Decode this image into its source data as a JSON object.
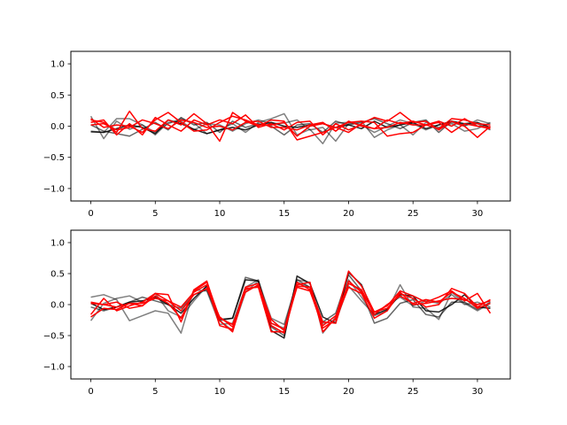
{
  "chart_data": [
    {
      "type": "line",
      "x": [
        0,
        1,
        2,
        3,
        4,
        5,
        6,
        7,
        8,
        9,
        10,
        11,
        12,
        13,
        14,
        15,
        16,
        17,
        18,
        19,
        20,
        21,
        22,
        23,
        24,
        25,
        26,
        27,
        28,
        29,
        30,
        31
      ],
      "xlim": [
        -1.55,
        32.55
      ],
      "ylim": [
        -1.2,
        1.2
      ],
      "xticks": [
        0,
        5,
        10,
        15,
        20,
        25,
        30
      ],
      "yticks": [
        -1.0,
        -0.5,
        0.0,
        0.5,
        1.0
      ],
      "xtick_labels": [
        "0",
        "5",
        "10",
        "15",
        "20",
        "25",
        "30"
      ],
      "ytick_labels": [
        "−1.0",
        "−0.5",
        "0.0",
        "0.5",
        "1.0"
      ],
      "grid": false,
      "series": [
        {
          "color": "#000000",
          "opacity": 0.5,
          "values": [
            0.16,
            -0.2,
            0.08,
            -0.05,
            0.02,
            -0.1,
            0.04,
            0.12,
            0.05,
            -0.12,
            -0.06,
            0.04,
            -0.1,
            0.06,
            0.12,
            0.2,
            -0.14,
            -0.05,
            -0.28,
            0.05,
            0.06,
            0.02,
            -0.1,
            0.0,
            0.1,
            0.04,
            -0.06,
            0.02,
            0.06,
            0.0,
            0.1,
            0.04
          ]
        },
        {
          "color": "#000000",
          "opacity": 0.5,
          "values": [
            -0.08,
            -0.1,
            0.12,
            0.12,
            0.02,
            -0.14,
            0.06,
            0.08,
            -0.06,
            0.04,
            0.02,
            -0.08,
            0.04,
            0.1,
            0.04,
            0.05,
            0.1,
            -0.06,
            -0.02,
            -0.24,
            0.04,
            0.08,
            -0.18,
            -0.06,
            0.02,
            -0.14,
            0.06,
            -0.02,
            0.04,
            -0.08,
            -0.04,
            0.06
          ]
        },
        {
          "color": "#000000",
          "opacity": 0.6,
          "values": [
            0.02,
            -0.08,
            -0.12,
            -0.16,
            -0.05,
            0.06,
            -0.06,
            0.14,
            0.02,
            0.06,
            -0.1,
            0.08,
            -0.02,
            0.04,
            0.0,
            -0.14,
            0.02,
            0.04,
            -0.1,
            0.08,
            0.02,
            0.06,
            0.12,
            0.04,
            -0.04,
            0.06,
            0.1,
            -0.1,
            0.08,
            0.02,
            0.04,
            -0.06
          ]
        },
        {
          "color": "#000000",
          "opacity": 0.85,
          "values": [
            -0.09,
            -0.1,
            -0.04,
            0.02,
            -0.02,
            -0.12,
            0.1,
            0.04,
            -0.05,
            -0.12,
            -0.06,
            -0.02,
            -0.06,
            0.02,
            0.06,
            0.0,
            -0.02,
            0.02,
            0.04,
            -0.02,
            0.02,
            -0.04,
            0.08,
            -0.02,
            0.02,
            0.06,
            -0.04,
            0.02,
            0.08,
            0.04,
            0.06,
            -0.02
          ]
        },
        {
          "color": "#ff0000",
          "opacity": 1.0,
          "values": [
            0.1,
            0.06,
            -0.1,
            0.24,
            -0.04,
            -0.08,
            0.1,
            0.02,
            0.2,
            0.04,
            -0.24,
            0.22,
            0.08,
            0.0,
            0.1,
            0.08,
            -0.22,
            -0.16,
            -0.1,
            -0.02,
            -0.1,
            0.04,
            0.14,
            0.08,
            0.22,
            0.06,
            0.08,
            -0.06,
            0.08,
            0.0,
            -0.18,
            0.0
          ]
        },
        {
          "color": "#ff0000",
          "opacity": 1.0,
          "values": [
            0.06,
            0.1,
            -0.14,
            0.04,
            -0.14,
            0.14,
            0.02,
            -0.08,
            0.1,
            0.02,
            0.1,
            0.04,
            0.18,
            -0.02,
            0.04,
            -0.06,
            0.06,
            0.08,
            -0.14,
            0.04,
            -0.06,
            0.02,
            -0.04,
            0.1,
            0.04,
            0.08,
            0.02,
            0.08,
            0.0,
            0.12,
            0.0,
            -0.02
          ]
        },
        {
          "color": "#ff0000",
          "opacity": 1.0,
          "values": [
            0.12,
            -0.02,
            0.02,
            0.0,
            -0.1,
            0.1,
            0.22,
            0.06,
            -0.08,
            -0.06,
            0.06,
            0.16,
            0.1,
            0.02,
            0.02,
            0.06,
            -0.16,
            0.0,
            0.04,
            -0.02,
            0.06,
            0.08,
            0.06,
            -0.16,
            -0.12,
            -0.1,
            0.02,
            -0.04,
            0.12,
            0.1,
            0.04,
            0.02
          ]
        },
        {
          "color": "#ff0000",
          "opacity": 1.0,
          "values": [
            0.02,
            0.04,
            -0.06,
            -0.02,
            0.1,
            0.04,
            -0.04,
            0.1,
            0.06,
            -0.02,
            0.0,
            -0.06,
            0.06,
            0.08,
            -0.02,
            -0.02,
            -0.06,
            0.02,
            0.06,
            -0.08,
            0.08,
            0.0,
            -0.04,
            -0.02,
            0.06,
            0.02,
            0.02,
            0.06,
            -0.1,
            0.04,
            0.0,
            -0.04
          ]
        }
      ]
    },
    {
      "type": "line",
      "x": [
        0,
        1,
        2,
        3,
        4,
        5,
        6,
        7,
        8,
        9,
        10,
        11,
        12,
        13,
        14,
        15,
        16,
        17,
        18,
        19,
        20,
        21,
        22,
        23,
        24,
        25,
        26,
        27,
        28,
        29,
        30,
        31
      ],
      "xlim": [
        -1.55,
        32.55
      ],
      "ylim": [
        -1.2,
        1.2
      ],
      "xticks": [
        0,
        5,
        10,
        15,
        20,
        25,
        30
      ],
      "yticks": [
        -1.0,
        -0.5,
        0.0,
        0.5,
        1.0
      ],
      "xtick_labels": [
        "0",
        "5",
        "10",
        "15",
        "20",
        "25",
        "30"
      ],
      "ytick_labels": [
        "−1.0",
        "−0.5",
        "0.0",
        "0.5",
        "1.0"
      ],
      "grid": false,
      "series": [
        {
          "color": "#000000",
          "opacity": 0.5,
          "values": [
            0.12,
            0.16,
            0.08,
            -0.26,
            -0.18,
            -0.1,
            -0.14,
            -0.46,
            0.24,
            0.22,
            -0.32,
            -0.3,
            0.28,
            0.4,
            -0.3,
            -0.38,
            0.4,
            0.36,
            -0.46,
            -0.2,
            0.4,
            0.12,
            -0.18,
            -0.1,
            0.32,
            -0.04,
            -0.06,
            -0.24,
            0.2,
            0.02,
            -0.1,
            0.02
          ]
        },
        {
          "color": "#000000",
          "opacity": 0.5,
          "values": [
            -0.26,
            0.02,
            0.1,
            0.14,
            0.04,
            0.18,
            -0.1,
            -0.2,
            0.06,
            0.3,
            -0.26,
            -0.42,
            0.2,
            0.38,
            -0.22,
            -0.32,
            0.36,
            0.28,
            -0.3,
            -0.28,
            0.3,
            0.06,
            -0.16,
            0.0,
            0.12,
            -0.02,
            0.06,
            0.02,
            0.16,
            0.0,
            0.04,
            -0.04
          ]
        },
        {
          "color": "#000000",
          "opacity": 0.6,
          "values": [
            -0.04,
            -0.1,
            -0.04,
            0.04,
            0.12,
            0.06,
            0.0,
            -0.06,
            0.16,
            0.24,
            -0.26,
            -0.22,
            0.44,
            0.38,
            -0.36,
            -0.5,
            0.4,
            0.28,
            -0.28,
            -0.14,
            0.48,
            0.22,
            -0.3,
            -0.22,
            0.02,
            0.08,
            -0.16,
            -0.2,
            0.04,
            0.04,
            -0.08,
            0.04
          ]
        },
        {
          "color": "#000000",
          "opacity": 0.85,
          "values": [
            0.02,
            -0.08,
            -0.04,
            0.04,
            0.06,
            0.12,
            0.0,
            -0.14,
            0.1,
            0.3,
            -0.24,
            -0.22,
            0.4,
            0.38,
            -0.42,
            -0.54,
            0.46,
            0.34,
            -0.2,
            -0.3,
            0.52,
            0.32,
            -0.16,
            -0.08,
            0.16,
            0.14,
            -0.1,
            -0.12,
            0.0,
            0.16,
            -0.04,
            -0.06
          ]
        },
        {
          "color": "#ff0000",
          "opacity": 1.0,
          "values": [
            0.02,
            0.0,
            0.04,
            -0.06,
            -0.02,
            0.18,
            0.16,
            -0.28,
            0.24,
            0.38,
            -0.26,
            -0.44,
            0.26,
            0.28,
            -0.44,
            -0.44,
            0.32,
            0.36,
            -0.44,
            -0.22,
            0.54,
            0.3,
            -0.12,
            -0.06,
            0.18,
            0.1,
            -0.04,
            0.0,
            0.26,
            0.18,
            -0.04,
            0.08
          ]
        },
        {
          "color": "#ff0000",
          "opacity": 1.0,
          "values": [
            0.04,
            0.0,
            -0.04,
            0.02,
            0.02,
            0.1,
            0.06,
            -0.04,
            0.2,
            0.32,
            -0.34,
            -0.4,
            0.24,
            0.3,
            -0.34,
            -0.46,
            0.3,
            0.28,
            -0.28,
            -0.3,
            0.38,
            0.2,
            -0.12,
            -0.02,
            0.22,
            0.14,
            0.04,
            0.12,
            0.22,
            0.06,
            0.18,
            -0.14
          ]
        },
        {
          "color": "#ff0000",
          "opacity": 1.0,
          "values": [
            -0.2,
            -0.06,
            -0.08,
            0.02,
            -0.02,
            0.14,
            0.02,
            -0.22,
            0.22,
            0.36,
            -0.22,
            -0.32,
            0.2,
            0.32,
            -0.24,
            -0.42,
            0.36,
            0.24,
            -0.38,
            -0.24,
            0.28,
            0.18,
            -0.22,
            -0.1,
            0.2,
            0.0,
            0.02,
            0.06,
            0.1,
            0.08,
            0.0,
            0.06
          ]
        },
        {
          "color": "#ff0000",
          "opacity": 1.0,
          "values": [
            -0.16,
            0.1,
            -0.1,
            -0.02,
            0.04,
            0.18,
            0.06,
            -0.1,
            0.16,
            0.26,
            -0.2,
            -0.36,
            0.28,
            0.34,
            -0.3,
            -0.4,
            0.28,
            0.22,
            -0.34,
            -0.18,
            0.34,
            0.24,
            -0.16,
            0.0,
            0.14,
            0.02,
            0.08,
            0.04,
            0.2,
            0.1,
            -0.06,
            0.02
          ]
        }
      ]
    }
  ]
}
